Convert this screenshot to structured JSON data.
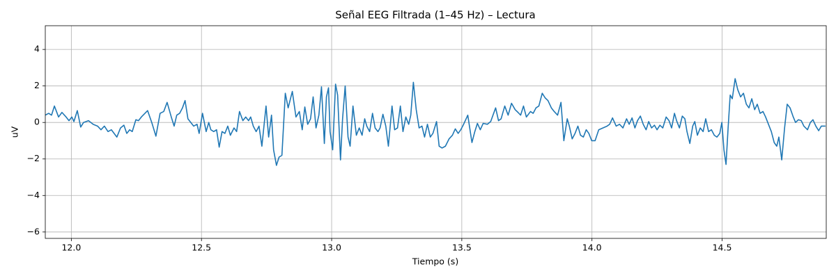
{
  "chart_data": {
    "type": "line",
    "title": "Señal EEG Filtrada (1–45 Hz) – Lectura",
    "xlabel": "Tiempo (s)",
    "ylabel": "uV",
    "xlim": [
      11.9,
      14.9
    ],
    "ylim": [
      -6.35,
      5.3
    ],
    "xticks": [
      {
        "value": 12,
        "label": "12.0"
      },
      12.5,
      {
        "value": 13,
        "label": "13.0"
      },
      13.5,
      {
        "value": 14,
        "label": "14.0"
      },
      14.5
    ],
    "yticks": [
      {
        "value": -6,
        "label": "−6"
      },
      {
        "value": -4,
        "label": "−4"
      },
      {
        "value": -2,
        "label": "−2"
      },
      0,
      2,
      4
    ],
    "grid": true,
    "series": [
      {
        "color": "#1f77b4",
        "x": [
          11.9,
          11.913,
          11.924,
          11.935,
          11.951,
          11.964,
          11.98,
          11.991,
          12.002,
          12.01,
          12.023,
          12.036,
          12.047,
          12.066,
          12.084,
          12.101,
          12.114,
          12.127,
          12.141,
          12.154,
          12.175,
          12.189,
          12.202,
          12.213,
          12.224,
          12.234,
          12.248,
          12.258,
          12.269,
          12.293,
          12.309,
          12.325,
          12.341,
          12.355,
          12.368,
          12.384,
          12.395,
          12.405,
          12.416,
          12.427,
          12.437,
          12.448,
          12.47,
          12.483,
          12.491,
          12.504,
          12.518,
          12.528,
          12.536,
          12.547,
          12.558,
          12.568,
          12.579,
          12.59,
          12.601,
          12.611,
          12.625,
          12.635,
          12.646,
          12.659,
          12.67,
          12.681,
          12.689,
          12.699,
          12.71,
          12.721,
          12.732,
          12.748,
          12.758,
          12.769,
          12.777,
          12.788,
          12.798,
          12.809,
          12.822,
          12.833,
          12.849,
          12.863,
          12.876,
          12.887,
          12.897,
          12.908,
          12.919,
          12.929,
          12.94,
          12.951,
          12.961,
          12.972,
          12.98,
          12.988,
          12.994,
          13.004,
          13.015,
          13.023,
          13.034,
          13.042,
          13.052,
          13.063,
          13.071,
          13.082,
          13.095,
          13.106,
          13.117,
          13.127,
          13.135,
          13.146,
          13.157,
          13.167,
          13.178,
          13.186,
          13.197,
          13.208,
          13.218,
          13.232,
          13.242,
          13.253,
          13.264,
          13.274,
          13.285,
          13.296,
          13.304,
          13.314,
          13.325,
          13.336,
          13.347,
          13.357,
          13.368,
          13.379,
          13.389,
          13.403,
          13.413,
          13.424,
          13.437,
          13.451,
          13.464,
          13.475,
          13.486,
          13.496,
          13.507,
          13.523,
          13.539,
          13.55,
          13.56,
          13.571,
          13.582,
          13.598,
          13.611,
          13.63,
          13.641,
          13.651,
          13.665,
          13.678,
          13.691,
          13.705,
          13.716,
          13.726,
          13.737,
          13.748,
          13.764,
          13.774,
          13.785,
          13.796,
          13.809,
          13.82,
          13.831,
          13.844,
          13.855,
          13.868,
          13.881,
          13.892,
          13.905,
          13.913,
          13.924,
          13.935,
          13.946,
          13.956,
          13.967,
          13.978,
          13.988,
          13.999,
          14.012,
          14.026,
          14.042,
          14.058,
          14.068,
          14.079,
          14.093,
          14.106,
          14.119,
          14.133,
          14.143,
          14.154,
          14.165,
          14.175,
          14.186,
          14.197,
          14.208,
          14.218,
          14.229,
          14.24,
          14.25,
          14.261,
          14.272,
          14.285,
          14.296,
          14.306,
          14.317,
          14.325,
          14.336,
          14.347,
          14.357,
          14.365,
          14.376,
          14.387,
          14.395,
          14.405,
          14.416,
          14.427,
          14.437,
          14.448,
          14.459,
          14.47,
          14.48,
          14.491,
          14.499,
          14.507,
          14.515,
          14.523,
          14.531,
          14.539,
          14.55,
          14.56,
          14.571,
          14.582,
          14.593,
          14.603,
          14.614,
          14.625,
          14.635,
          14.646,
          14.657,
          14.667,
          14.678,
          14.689,
          14.7,
          14.71,
          14.718,
          14.729,
          14.74,
          14.75,
          14.761,
          14.772,
          14.782,
          14.793,
          14.804,
          14.814,
          14.828,
          14.839,
          14.849,
          14.86,
          14.871,
          14.881,
          14.897
        ],
        "values": [
          0.4,
          0.5,
          0.4,
          0.9,
          0.3,
          0.55,
          0.3,
          0.1,
          0.3,
          0.05,
          0.65,
          -0.25,
          0,
          0.1,
          -0.1,
          -0.2,
          -0.4,
          -0.2,
          -0.5,
          -0.4,
          -0.8,
          -0.3,
          -0.15,
          -0.6,
          -0.4,
          -0.5,
          0.15,
          0.1,
          0.3,
          0.65,
          0,
          -0.75,
          0.5,
          0.6,
          1.1,
          0.3,
          -0.2,
          0.4,
          0.5,
          0.8,
          1.2,
          0.2,
          -0.2,
          -0.1,
          -0.6,
          0.5,
          -0.5,
          0,
          -0.4,
          -0.5,
          -0.4,
          -1.35,
          -0.5,
          -0.6,
          -0.2,
          -0.7,
          -0.3,
          -0.5,
          0.6,
          0.1,
          0.3,
          0.1,
          0.3,
          -0.2,
          -0.5,
          -0.2,
          -1.3,
          0.9,
          -0.8,
          0.4,
          -1.5,
          -2.35,
          -1.9,
          -1.8,
          1.6,
          0.8,
          1.7,
          0.3,
          0.6,
          -0.4,
          0.85,
          -0.1,
          0.2,
          1.4,
          -0.3,
          0.4,
          1.95,
          -1.15,
          1.4,
          1.9,
          -0.5,
          -1.5,
          2.1,
          1.5,
          -2.05,
          0.2,
          2.0,
          -0.8,
          -1.3,
          0.9,
          -0.7,
          -0.3,
          -0.7,
          0.2,
          -0.2,
          -0.5,
          0.5,
          -0.3,
          -0.5,
          -0.3,
          0.45,
          -0.2,
          -1.3,
          0.9,
          -0.4,
          -0.3,
          0.9,
          -0.5,
          0.3,
          -0.1,
          0.4,
          2.2,
          0.7,
          -0.3,
          -0.2,
          -0.8,
          -0.1,
          -0.8,
          -0.6,
          0.05,
          -1.3,
          -1.4,
          -1.3,
          -0.9,
          -0.7,
          -0.35,
          -0.6,
          -0.4,
          -0.1,
          0.4,
          -1.1,
          -0.5,
          -0.05,
          -0.4,
          -0.05,
          -0.1,
          0.05,
          0.8,
          0.1,
          0.2,
          0.9,
          0.4,
          1.05,
          0.7,
          0.55,
          0.4,
          0.9,
          0.3,
          0.6,
          0.5,
          0.8,
          0.9,
          1.6,
          1.35,
          1.2,
          0.8,
          0.6,
          0.4,
          1.1,
          -1.0,
          0.2,
          -0.2,
          -0.9,
          -0.6,
          -0.2,
          -0.7,
          -0.8,
          -0.4,
          -0.6,
          -1.0,
          -1.0,
          -0.4,
          -0.3,
          -0.2,
          -0.1,
          0.25,
          -0.2,
          -0.1,
          -0.3,
          0.2,
          -0.1,
          0.25,
          -0.3,
          0.1,
          0.35,
          -0.1,
          -0.4,
          0.05,
          -0.3,
          -0.15,
          -0.4,
          -0.15,
          -0.3,
          0.3,
          0.1,
          -0.3,
          0.5,
          0.1,
          -0.3,
          0.35,
          0.2,
          -0.5,
          -1.15,
          -0.2,
          0.05,
          -0.7,
          -0.3,
          -0.5,
          0.2,
          -0.5,
          -0.4,
          -0.7,
          -0.8,
          -0.6,
          0,
          -1.5,
          -2.3,
          -0.3,
          1.5,
          1.3,
          2.4,
          1.8,
          1.4,
          1.6,
          1.0,
          0.8,
          1.3,
          0.7,
          1.0,
          0.5,
          0.6,
          0.3,
          -0.1,
          -0.5,
          -1.1,
          -1.3,
          -0.8,
          -2.05,
          -0.3,
          1.0,
          0.8,
          0.35,
          0.0,
          0.15,
          0.1,
          -0.2,
          -0.4,
          0.0,
          0.15,
          -0.2,
          -0.45,
          -0.2,
          -0.2
        ]
      }
    ]
  }
}
